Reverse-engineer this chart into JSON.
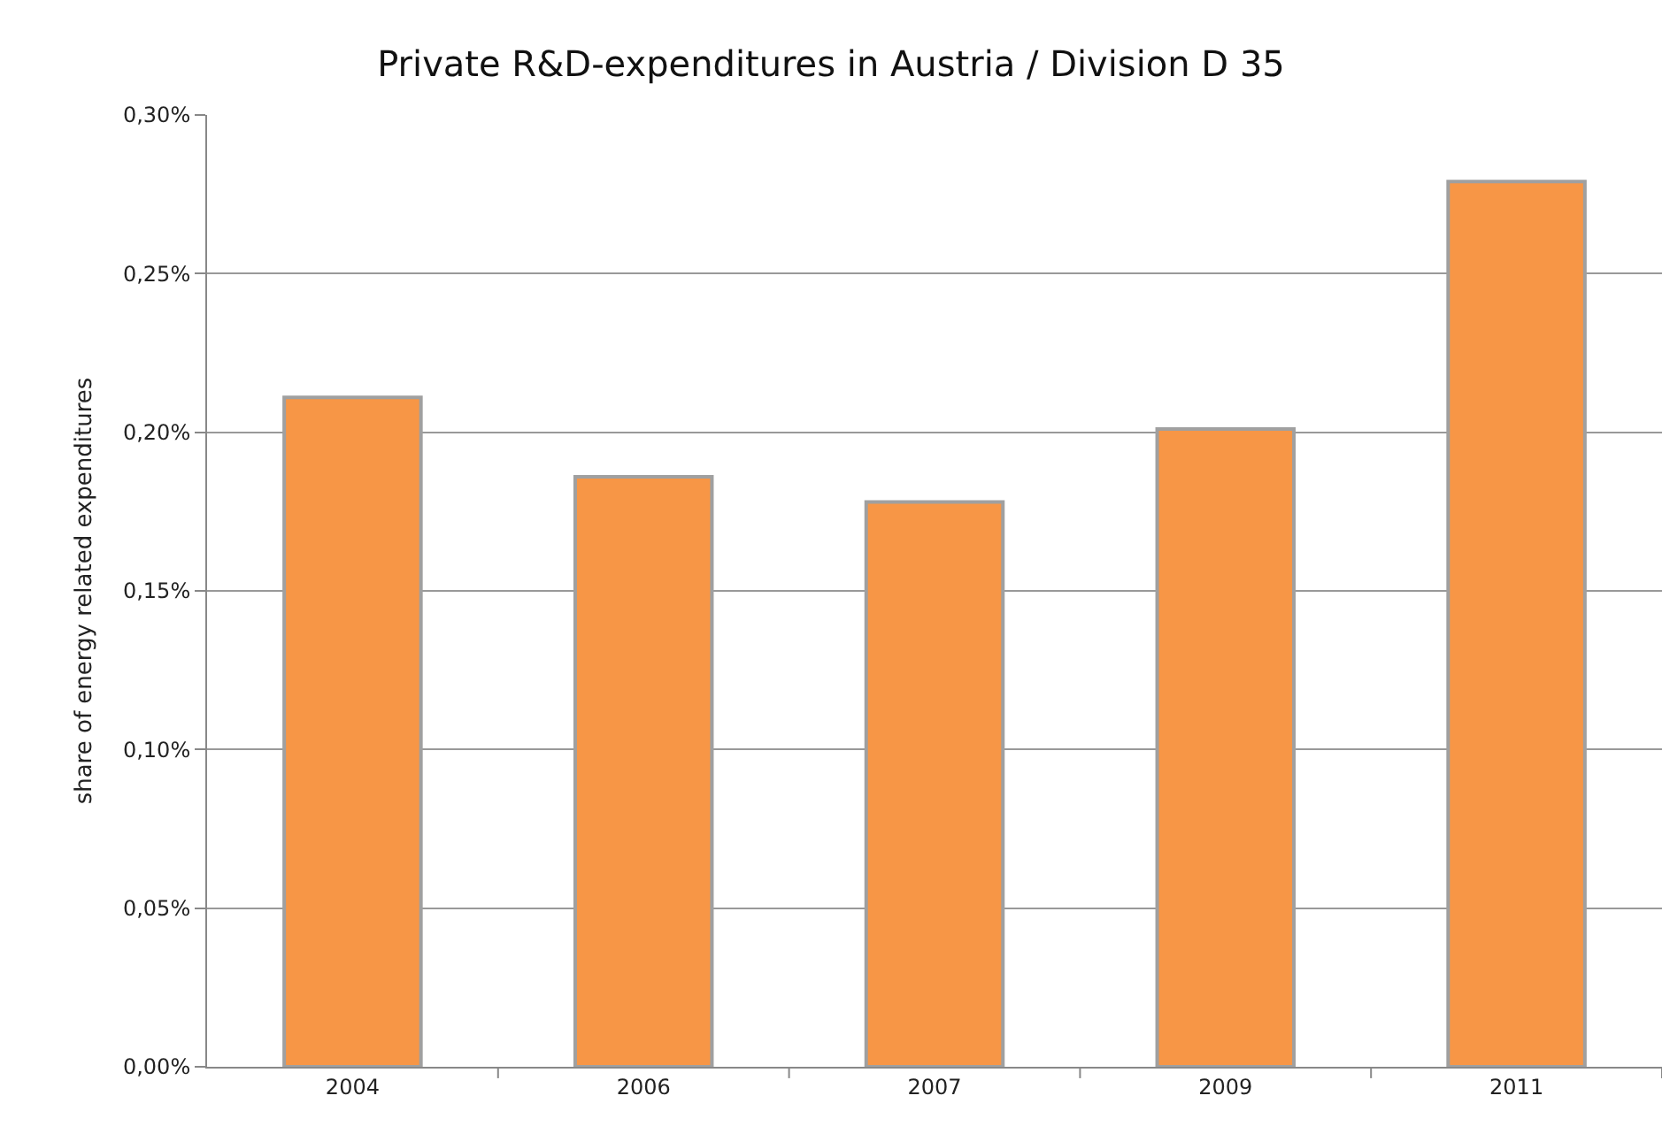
{
  "chart_data": {
    "type": "bar",
    "title": "Private R&D-expenditures in Austria / Division D 35",
    "ylabel": "share of energy related expenditures",
    "categories": [
      "2004",
      "2006",
      "2007",
      "2009",
      "2011"
    ],
    "values": [
      0.211,
      0.186,
      0.178,
      0.201,
      0.279
    ],
    "color": "#f79646",
    "ylim": [
      0,
      0.3
    ],
    "yticks": [
      {
        "value": 0,
        "label": "0,00%"
      },
      {
        "value": 0.05,
        "label": "0,05%"
      },
      {
        "value": 0.1,
        "label": "0,10%"
      },
      {
        "value": 0.15,
        "label": "0,15%"
      },
      {
        "value": 0.2,
        "label": "0,20%"
      },
      {
        "value": 0.25,
        "label": "0,25%"
      },
      {
        "value": 0.3,
        "label": "0,30%"
      }
    ],
    "grid": "y",
    "legend": false
  }
}
